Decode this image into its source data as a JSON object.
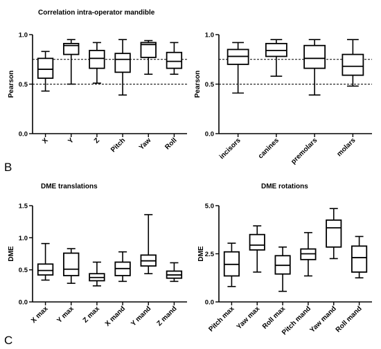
{
  "panel_letters": {
    "b": "B",
    "c": "C"
  },
  "chart_data": [
    {
      "id": "tl",
      "type": "boxplot",
      "title": "Correlation intra-operator mandible",
      "ylabel": "Pearson",
      "ylim": [
        0,
        1
      ],
      "yticks": [
        0,
        0.5,
        1
      ],
      "ytick_labels": [
        "0.0",
        "0.5",
        "1.0"
      ],
      "reference_lines": [
        0.5,
        0.75
      ],
      "categories": [
        "X",
        "Y",
        "Z",
        "Pitch",
        "Yaw",
        "Roll"
      ],
      "boxes": [
        {
          "min": 0.43,
          "q1": 0.56,
          "median": 0.65,
          "q3": 0.76,
          "max": 0.83
        },
        {
          "min": 0.5,
          "q1": 0.8,
          "median": 0.89,
          "q3": 0.91,
          "max": 0.95
        },
        {
          "min": 0.51,
          "q1": 0.66,
          "median": 0.76,
          "q3": 0.84,
          "max": 0.92
        },
        {
          "min": 0.39,
          "q1": 0.62,
          "median": 0.75,
          "q3": 0.81,
          "max": 0.95
        },
        {
          "min": 0.6,
          "q1": 0.77,
          "median": 0.9,
          "q3": 0.92,
          "max": 0.94
        },
        {
          "min": 0.6,
          "q1": 0.66,
          "median": 0.73,
          "q3": 0.82,
          "max": 0.92
        }
      ]
    },
    {
      "id": "tr",
      "type": "boxplot",
      "title": "",
      "ylabel": "Pearson",
      "ylim": [
        0,
        1
      ],
      "yticks": [
        0,
        0.5,
        1
      ],
      "ytick_labels": [
        "0.0",
        "0.5",
        "1.0"
      ],
      "reference_lines": [
        0.5,
        0.75
      ],
      "categories": [
        "incisors",
        "canines",
        "premolars",
        "molars"
      ],
      "boxes": [
        {
          "min": 0.41,
          "q1": 0.7,
          "median": 0.78,
          "q3": 0.85,
          "max": 0.92
        },
        {
          "min": 0.58,
          "q1": 0.78,
          "median": 0.84,
          "q3": 0.91,
          "max": 0.95
        },
        {
          "min": 0.39,
          "q1": 0.66,
          "median": 0.76,
          "q3": 0.89,
          "max": 0.95
        },
        {
          "min": 0.48,
          "q1": 0.59,
          "median": 0.68,
          "q3": 0.8,
          "max": 0.95
        }
      ]
    },
    {
      "id": "bl",
      "type": "boxplot",
      "title": "DME translations",
      "ylabel": "DME",
      "ylim": [
        0,
        1.5
      ],
      "yticks": [
        0,
        0.5,
        1,
        1.5
      ],
      "ytick_labels": [
        "0.0",
        "0.5",
        "1.0",
        "1.5"
      ],
      "reference_lines": [],
      "categories": [
        "X max",
        "Y max",
        "Z max",
        "X mand",
        "Y mand",
        "Z mand"
      ],
      "boxes": [
        {
          "min": 0.34,
          "q1": 0.42,
          "median": 0.49,
          "q3": 0.59,
          "max": 0.91
        },
        {
          "min": 0.29,
          "q1": 0.41,
          "median": 0.51,
          "q3": 0.76,
          "max": 0.83
        },
        {
          "min": 0.25,
          "q1": 0.33,
          "median": 0.38,
          "q3": 0.44,
          "max": 0.62
        },
        {
          "min": 0.32,
          "q1": 0.41,
          "median": 0.52,
          "q3": 0.62,
          "max": 0.78
        },
        {
          "min": 0.44,
          "q1": 0.56,
          "median": 0.64,
          "q3": 0.73,
          "max": 1.36
        },
        {
          "min": 0.32,
          "q1": 0.37,
          "median": 0.42,
          "q3": 0.48,
          "max": 0.61
        }
      ]
    },
    {
      "id": "br",
      "type": "boxplot",
      "title": "DME rotations",
      "ylabel": "DME",
      "ylim": [
        0,
        5
      ],
      "yticks": [
        0,
        2.5,
        5
      ],
      "ytick_labels": [
        "0.0",
        "2.5",
        "5.0"
      ],
      "reference_lines": [],
      "categories": [
        "Pitch max",
        "Yaw max",
        "Roll max",
        "Pitch mand",
        "Yaw mand",
        "Roll mand"
      ],
      "boxes": [
        {
          "min": 0.8,
          "q1": 1.35,
          "median": 1.95,
          "q3": 2.6,
          "max": 3.05
        },
        {
          "min": 1.55,
          "q1": 2.7,
          "median": 2.95,
          "q3": 3.5,
          "max": 3.95
        },
        {
          "min": 0.55,
          "q1": 1.45,
          "median": 1.9,
          "q3": 2.4,
          "max": 2.85
        },
        {
          "min": 1.35,
          "q1": 2.2,
          "median": 2.5,
          "q3": 2.75,
          "max": 3.6
        },
        {
          "min": 2.25,
          "q1": 2.85,
          "median": 3.85,
          "q3": 4.25,
          "max": 4.85
        },
        {
          "min": 1.25,
          "q1": 1.55,
          "median": 2.3,
          "q3": 2.9,
          "max": 3.4
        }
      ]
    }
  ]
}
